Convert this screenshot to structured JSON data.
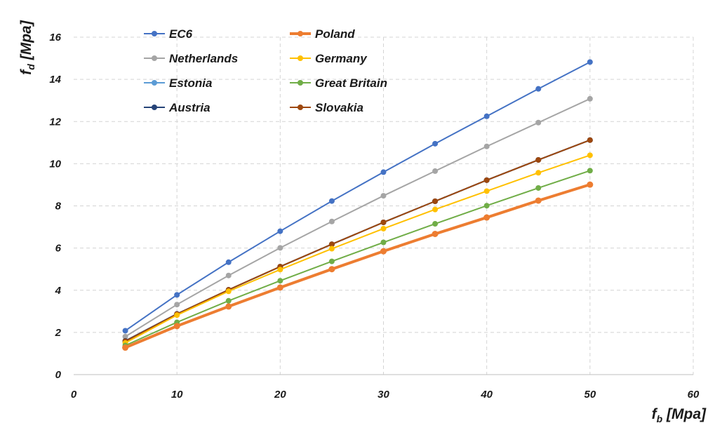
{
  "chart_data": {
    "type": "line",
    "x": [
      5,
      10,
      15,
      20,
      25,
      30,
      35,
      40,
      45,
      50
    ],
    "xlim": [
      0,
      60
    ],
    "ylim": [
      0,
      16
    ],
    "xticks": [
      "0",
      "10",
      "20",
      "30",
      "40",
      "50",
      "60"
    ],
    "yticks": [
      "0",
      "2",
      "4",
      "6",
      "8",
      "10",
      "12",
      "14",
      "16"
    ],
    "xlabel_main": "f",
    "xlabel_sub": "b",
    "xlabel_unit": " [Mpa]",
    "ylabel_main": "f",
    "ylabel_sub": "d",
    "ylabel_unit": " [Mpa]",
    "grid": true,
    "legend_position": "top-left",
    "series": [
      {
        "name": "EC6",
        "color": "#4472C4",
        "values": [
          2.08,
          3.78,
          5.33,
          6.8,
          8.23,
          9.6,
          10.95,
          12.25,
          13.55,
          14.82
        ]
      },
      {
        "name": "Netherlands",
        "color": "#A5A5A5",
        "values": [
          1.8,
          3.32,
          4.7,
          6.01,
          7.26,
          8.48,
          9.65,
          10.82,
          11.95,
          13.08
        ]
      },
      {
        "name": "Estonia",
        "color": "#5B9BD5",
        "values": [
          1.55,
          2.85,
          4.02,
          5.12,
          6.18,
          7.22,
          8.22,
          9.22,
          10.18,
          11.12
        ]
      },
      {
        "name": "Austria",
        "color": "#264478",
        "values": [
          1.6,
          2.88,
          4.02,
          5.12,
          6.18,
          7.22,
          8.22,
          9.22,
          10.18,
          11.12
        ]
      },
      {
        "name": "Poland",
        "color": "#ED7D31",
        "values": [
          1.28,
          2.3,
          3.23,
          4.13,
          5.0,
          5.85,
          6.67,
          7.45,
          8.25,
          9.01
        ]
      },
      {
        "name": "Germany",
        "color": "#FFC000",
        "values": [
          1.5,
          2.82,
          3.95,
          4.98,
          5.97,
          6.92,
          7.83,
          8.7,
          9.57,
          10.4
        ]
      },
      {
        "name": "Great Britain",
        "color": "#70AD47",
        "values": [
          1.38,
          2.48,
          3.5,
          4.45,
          5.37,
          6.27,
          7.15,
          8.01,
          8.85,
          9.67
        ]
      },
      {
        "name": "Slovakia",
        "color": "#9E480E",
        "values": [
          1.58,
          2.87,
          4.02,
          5.12,
          6.18,
          7.22,
          8.22,
          9.22,
          10.18,
          11.12
        ]
      }
    ]
  }
}
